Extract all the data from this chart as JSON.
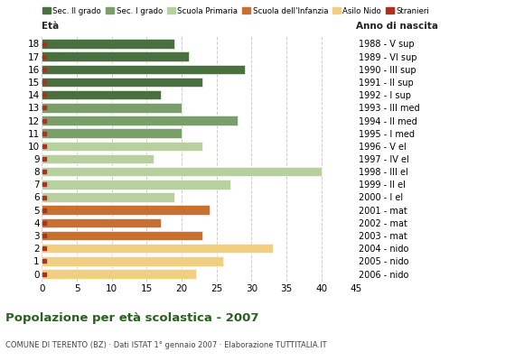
{
  "ages": [
    18,
    17,
    16,
    15,
    14,
    13,
    12,
    11,
    10,
    9,
    8,
    7,
    6,
    5,
    4,
    3,
    2,
    1,
    0
  ],
  "years": [
    "1988 - V sup",
    "1989 - VI sup",
    "1990 - III sup",
    "1991 - II sup",
    "1992 - I sup",
    "1993 - III med",
    "1994 - II med",
    "1995 - I med",
    "1996 - V el",
    "1997 - IV el",
    "1998 - III el",
    "1999 - II el",
    "2000 - I el",
    "2001 - mat",
    "2002 - mat",
    "2003 - mat",
    "2004 - nido",
    "2005 - nido",
    "2006 - nido"
  ],
  "values": [
    19,
    21,
    29,
    23,
    17,
    20,
    28,
    20,
    23,
    16,
    40,
    27,
    19,
    24,
    17,
    23,
    33,
    26,
    22
  ],
  "categories": [
    "Sec. II grado",
    "Sec. II grado",
    "Sec. II grado",
    "Sec. II grado",
    "Sec. II grado",
    "Sec. I grado",
    "Sec. I grado",
    "Sec. I grado",
    "Scuola Primaria",
    "Scuola Primaria",
    "Scuola Primaria",
    "Scuola Primaria",
    "Scuola Primaria",
    "Scuola dell'Infanzia",
    "Scuola dell'Infanzia",
    "Scuola dell'Infanzia",
    "Asilo Nido",
    "Asilo Nido",
    "Asilo Nido"
  ],
  "bar_colors": {
    "Sec. II grado": "#4a7040",
    "Sec. I grado": "#7a9e6a",
    "Scuola Primaria": "#b8cfa0",
    "Scuola dell'Infanzia": "#c87030",
    "Asilo Nido": "#f0d080"
  },
  "stranieri_color": "#b03020",
  "legend_labels": [
    "Sec. II grado",
    "Sec. I grado",
    "Scuola Primaria",
    "Scuola dell'Infanzia",
    "Asilo Nido",
    "Stranieri"
  ],
  "title": "Popolazione per età scolastica - 2007",
  "subtitle": "COMUNE DI TERENTO (BZ) · Dati ISTAT 1° gennaio 2007 · Elaborazione TUTTITALIA.IT",
  "xlabel_left": "Età",
  "xlabel_right": "Anno di nascita",
  "xlim": [
    0,
    45
  ],
  "xticks": [
    0,
    5,
    10,
    15,
    20,
    25,
    30,
    35,
    40,
    45
  ],
  "grid_color": "#cccccc",
  "bg_color": "#ffffff",
  "bar_height": 0.75
}
